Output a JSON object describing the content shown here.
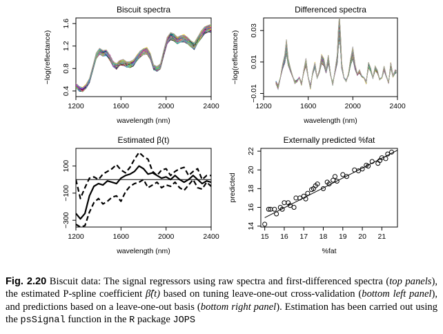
{
  "chart_data": [
    {
      "type": "line",
      "title": "Biscuit spectra",
      "xlabel": "wavelength (nm)",
      "ylabel": "−log(reflectance)",
      "xlim": [
        1200,
        2400
      ],
      "ylim": [
        0.3,
        1.7
      ],
      "xticks": [
        1200,
        1600,
        2000,
        2400
      ],
      "yticks": [
        0.4,
        0.8,
        1.2,
        1.6
      ],
      "xtick_labels": [
        "1200",
        "1600",
        "2000",
        "2400"
      ],
      "ytick_labels": [
        "0.4",
        "0.8",
        "1.2",
        "1.6"
      ],
      "n_curves": 40,
      "x": [
        1200,
        1230,
        1260,
        1290,
        1320,
        1350,
        1380,
        1410,
        1440,
        1470,
        1500,
        1530,
        1560,
        1590,
        1620,
        1650,
        1680,
        1710,
        1740,
        1770,
        1800,
        1830,
        1860,
        1890,
        1920,
        1950,
        1980,
        2010,
        2040,
        2070,
        2100,
        2130,
        2160,
        2190,
        2220,
        2250,
        2280,
        2310,
        2340,
        2370,
        2400
      ],
      "y_typical": [
        0.5,
        0.44,
        0.42,
        0.48,
        0.58,
        0.8,
        1.02,
        1.1,
        1.07,
        1.08,
        1.0,
        0.88,
        0.84,
        0.9,
        0.91,
        0.87,
        0.87,
        0.9,
        0.98,
        1.06,
        1.1,
        1.12,
        1.02,
        0.82,
        0.8,
        0.84,
        1.08,
        1.3,
        1.38,
        1.36,
        1.3,
        1.33,
        1.34,
        1.3,
        1.24,
        1.2,
        1.3,
        1.4,
        1.48,
        1.5,
        1.52
      ],
      "colors": [
        "#000000",
        "#df536b",
        "#61d04f",
        "#2297e6",
        "#28e2e5",
        "#cd0bbc",
        "#f5c710",
        "#9e9e9e"
      ]
    },
    {
      "type": "line",
      "title": "Differenced spectra",
      "xlabel": "wavelength (nm)",
      "ylabel": "−log(reflectance)",
      "xlim": [
        1200,
        2400
      ],
      "ylim": [
        -0.012,
        0.038
      ],
      "xticks": [
        1200,
        1600,
        2000,
        2400
      ],
      "yticks": [
        -0.01,
        0.01,
        0.03
      ],
      "xtick_labels": [
        "1200",
        "1600",
        "2000",
        "2400"
      ],
      "ytick_labels": [
        "−0.01",
        "0.01",
        "0.03"
      ],
      "n_curves": 40,
      "x": [
        1310,
        1330,
        1350,
        1370,
        1390,
        1405,
        1420,
        1440,
        1460,
        1480,
        1500,
        1520,
        1540,
        1560,
        1580,
        1600,
        1620,
        1640,
        1660,
        1680,
        1700,
        1720,
        1740,
        1760,
        1780,
        1800,
        1820,
        1840,
        1860,
        1870,
        1880,
        1890,
        1900,
        1920,
        1940,
        1960,
        1980,
        2000,
        2020,
        2040,
        2060,
        2080,
        2100,
        2120,
        2140,
        2160,
        2180,
        2200,
        2220,
        2240,
        2260,
        2280,
        2300,
        2320,
        2340,
        2360,
        2380,
        2390
      ],
      "y_typical": [
        -0.003,
        -0.006,
        0.0,
        0.007,
        0.012,
        0.02,
        0.01,
        0.005,
        0.001,
        -0.003,
        -0.002,
        0.0,
        -0.004,
        0.004,
        0.01,
        0.0,
        -0.006,
        0.003,
        0.008,
        0.0,
        0.004,
        0.012,
        0.01,
        0.004,
        0.012,
        0.002,
        -0.004,
        0.004,
        0.012,
        0.025,
        0.033,
        0.022,
        0.008,
        0.0,
        -0.002,
        0.002,
        0.01,
        0.016,
        0.007,
        0.002,
        0.004,
        0.001,
        0.0,
        -0.003,
        0.008,
        0.005,
        0.0,
        0.006,
        0.004,
        -0.001,
        0.0,
        0.006,
        0.001,
        -0.003,
        0.008,
        0.001,
        0.004,
        0.004
      ],
      "colors": [
        "#000000",
        "#df536b",
        "#61d04f",
        "#2297e6",
        "#28e2e5",
        "#cd0bbc",
        "#f5c710",
        "#9e9e9e"
      ]
    },
    {
      "type": "line",
      "title": "Estimated β(t)",
      "xlabel": "wavelength (nm)",
      "ylabel": "",
      "xlim": [
        1200,
        2400
      ],
      "ylim": [
        -350,
        230
      ],
      "xticks": [
        1200,
        1600,
        2000,
        2400
      ],
      "yticks": [
        -300,
        -100,
        100
      ],
      "xtick_labels": [
        "1200",
        "1600",
        "2000",
        "2400"
      ],
      "ytick_labels": [
        "−300",
        "−100",
        "100"
      ],
      "hline": 0,
      "x": [
        1200,
        1240,
        1280,
        1320,
        1360,
        1400,
        1440,
        1480,
        1520,
        1560,
        1600,
        1640,
        1680,
        1720,
        1760,
        1800,
        1840,
        1880,
        1920,
        1960,
        2000,
        2040,
        2080,
        2120,
        2160,
        2200,
        2240,
        2280,
        2320,
        2360,
        2400
      ],
      "series": [
        {
          "style": "solid",
          "values": [
            -250,
            -290,
            -250,
            -120,
            -50,
            -30,
            -40,
            -10,
            -20,
            -30,
            10,
            30,
            40,
            60,
            100,
            80,
            40,
            50,
            30,
            10,
            20,
            0,
            30,
            0,
            -20,
            0,
            30,
            0,
            -30,
            -10,
            -20
          ]
        },
        {
          "style": "dashed",
          "values": [
            0,
            -140,
            -60,
            10,
            20,
            0,
            40,
            60,
            80,
            110,
            70,
            50,
            90,
            150,
            200,
            170,
            150,
            60,
            30,
            70,
            80,
            30,
            60,
            80,
            90,
            30,
            60,
            80,
            0,
            30,
            30
          ]
        },
        {
          "style": "dashed",
          "values": [
            -330,
            -350,
            -340,
            -240,
            -170,
            -140,
            -180,
            -160,
            -130,
            -120,
            -160,
            -90,
            -50,
            -30,
            -20,
            0,
            -60,
            -40,
            -20,
            -60,
            -40,
            -50,
            -20,
            -60,
            -80,
            -40,
            0,
            -60,
            -70,
            -20,
            -50
          ]
        }
      ]
    },
    {
      "type": "scatter",
      "title": "Externally predicted %fat",
      "xlabel": "%fat",
      "ylabel": "predicted",
      "xlim": [
        14.8,
        21.8
      ],
      "ylim": [
        13.9,
        22.3
      ],
      "xticks": [
        15,
        16,
        17,
        18,
        19,
        20,
        21
      ],
      "yticks": [
        14,
        16,
        18,
        20,
        22
      ],
      "xtick_labels": [
        "15",
        "16",
        "17",
        "18",
        "19",
        "20",
        "21"
      ],
      "ytick_labels": [
        "14",
        "16",
        "18",
        "20",
        "22"
      ],
      "points": [
        [
          15.0,
          14.2
        ],
        [
          15.2,
          15.8
        ],
        [
          15.3,
          15.8
        ],
        [
          15.5,
          15.8
        ],
        [
          15.6,
          15.3
        ],
        [
          15.8,
          16.0
        ],
        [
          15.9,
          15.8
        ],
        [
          16.0,
          16.5
        ],
        [
          16.2,
          16.5
        ],
        [
          16.3,
          16.2
        ],
        [
          16.5,
          16.0
        ],
        [
          16.6,
          17.0
        ],
        [
          16.8,
          17.0
        ],
        [
          17.0,
          17.2
        ],
        [
          17.1,
          16.9
        ],
        [
          17.2,
          17.5
        ],
        [
          17.4,
          17.9
        ],
        [
          17.5,
          18.0
        ],
        [
          17.6,
          18.3
        ],
        [
          17.7,
          18.5
        ],
        [
          18.0,
          18.0
        ],
        [
          18.2,
          18.7
        ],
        [
          18.3,
          18.5
        ],
        [
          18.5,
          18.9
        ],
        [
          18.6,
          19.3
        ],
        [
          18.7,
          18.8
        ],
        [
          19.0,
          19.5
        ],
        [
          19.2,
          19.3
        ],
        [
          19.6,
          20.0
        ],
        [
          19.8,
          19.9
        ],
        [
          20.0,
          20.1
        ],
        [
          20.2,
          20.5
        ],
        [
          20.3,
          20.4
        ],
        [
          20.5,
          20.9
        ],
        [
          20.8,
          20.7
        ],
        [
          20.9,
          21.0
        ],
        [
          21.0,
          21.3
        ],
        [
          21.2,
          21.2
        ],
        [
          21.3,
          21.7
        ],
        [
          21.5,
          21.9
        ]
      ],
      "fit_line": [
        [
          15.0,
          14.9
        ],
        [
          21.8,
          22.1
        ]
      ]
    }
  ],
  "caption": {
    "fig_label": "Fig. 2.20",
    "t1": " Biscuit data: The signal regressors using raw spectra and first-differenced spectra (",
    "i1": "top panels",
    "t2": "), the estimated P-spline coefficient ",
    "beta_hat": "β̂(t)",
    "t3": " based on tuning leave-one-out cross-validation (",
    "i2": "bottom left panel",
    "t4": "), and predictions based on a leave-one-out basis (",
    "i3": "bottom right panel",
    "t5": "). Estimation has been carried out using the ",
    "fn": "psSignal",
    "t6": " function in the ",
    "lang": "R",
    "t7": " package ",
    "pkg": "JOPS"
  }
}
